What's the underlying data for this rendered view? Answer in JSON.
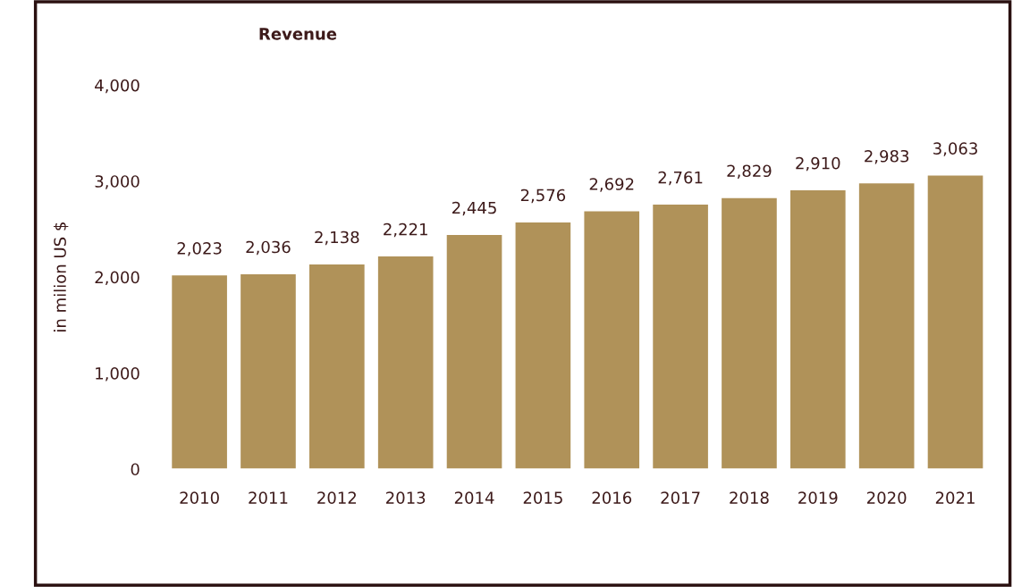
{
  "chart_data": {
    "type": "bar",
    "title": "Revenue",
    "ylabel": "in milion US $",
    "categories": [
      "2010",
      "2011",
      "2012",
      "2013",
      "2014",
      "2015",
      "2016",
      "2017",
      "2018",
      "2019",
      "2020",
      "2021"
    ],
    "values": [
      2023,
      2036,
      2138,
      2221,
      2445,
      2576,
      2692,
      2761,
      2829,
      2910,
      2983,
      3063
    ],
    "value_labels": [
      "2,023",
      "2,036",
      "2,138",
      "2,221",
      "2,445",
      "2,576",
      "2,692",
      "2,761",
      "2,829",
      "2,910",
      "2,983",
      "3,063"
    ],
    "color": "#b09259",
    "ylim": [
      0,
      4000
    ],
    "yticks": [
      0,
      {
        "value": 1000,
        "label": "1,000"
      },
      {
        "value": 2000,
        "label": "2,000"
      },
      {
        "value": 3000,
        "label": "3,000"
      },
      {
        "value": 4000,
        "label": "4,000"
      }
    ],
    "grid": false,
    "legend": false
  }
}
